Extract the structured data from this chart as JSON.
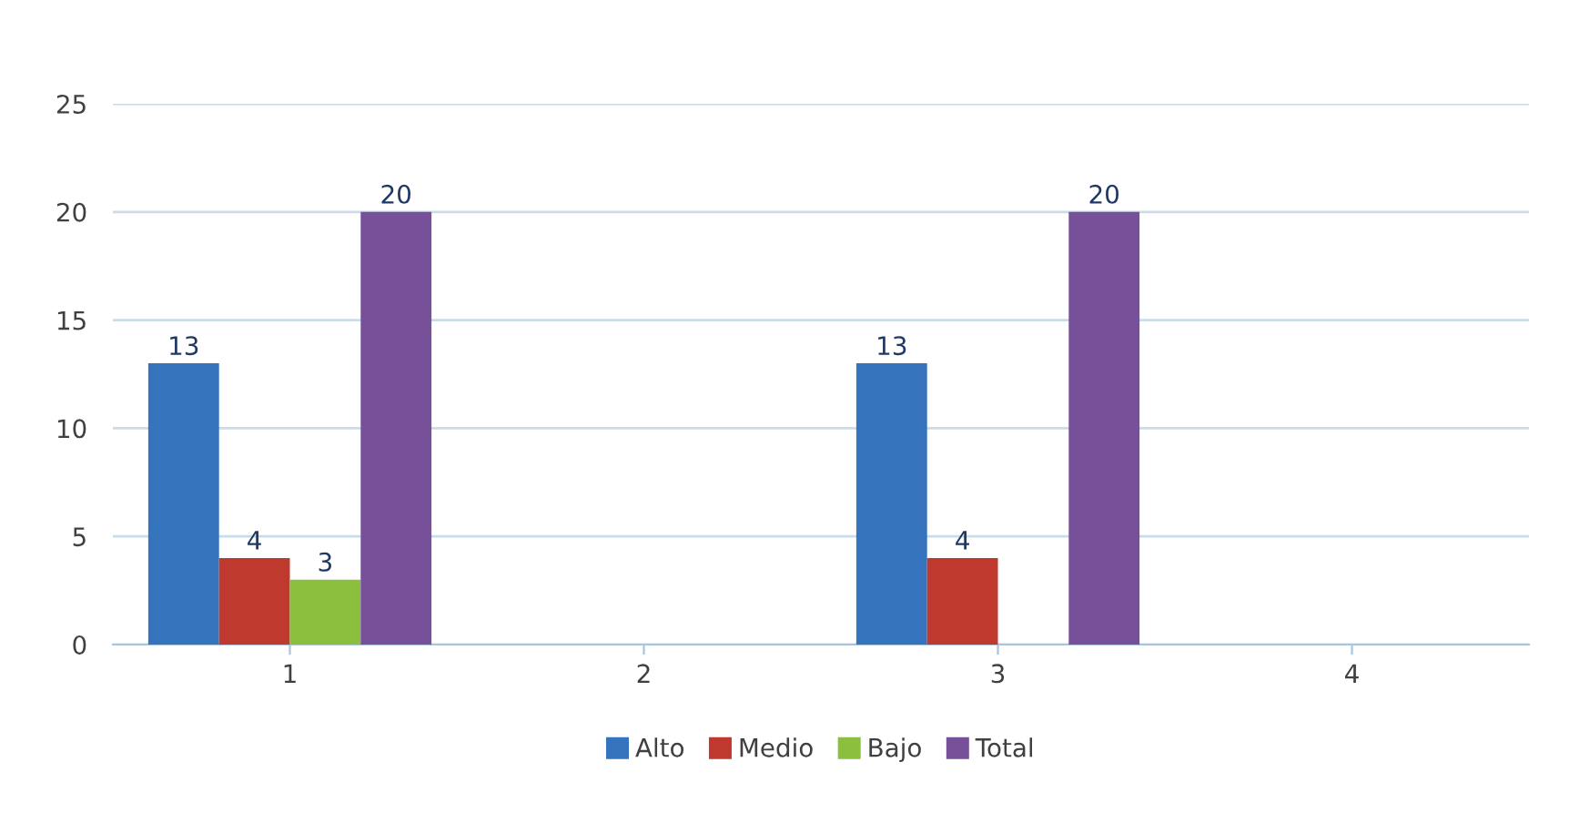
{
  "chart_data": {
    "type": "bar",
    "categories": [
      "1",
      "2",
      "3",
      "4"
    ],
    "series": [
      {
        "name": "Alto",
        "color": "#3574bd",
        "values": [
          13,
          null,
          13,
          null
        ]
      },
      {
        "name": "Medio",
        "color": "#c0392f",
        "values": [
          4,
          null,
          4,
          null
        ]
      },
      {
        "name": "Bajo",
        "color": "#8dbf3f",
        "values": [
          3,
          null,
          null,
          null
        ]
      },
      {
        "name": "Total",
        "color": "#77509a",
        "values": [
          20,
          null,
          20,
          null
        ]
      }
    ],
    "ylim": [
      0,
      25
    ],
    "yticks": [
      0,
      5,
      10,
      15,
      20,
      25
    ],
    "grid": "y",
    "legend": "bottom",
    "data_labels": true
  }
}
